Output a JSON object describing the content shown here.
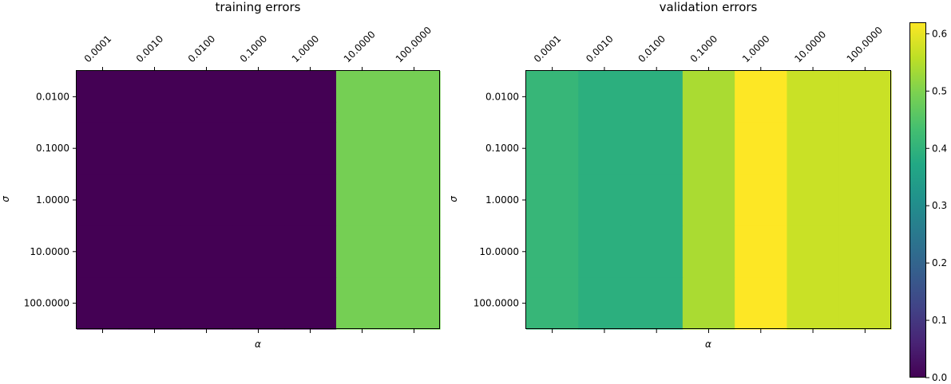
{
  "chart_data": [
    {
      "type": "heatmap",
      "title": "training errors",
      "xlabel": "α",
      "ylabel": "σ",
      "x_tick_labels": [
        "0.0001",
        "0.0010",
        "0.0100",
        "0.1000",
        "1.0000",
        "10.0000",
        "100.0000"
      ],
      "y_tick_labels": [
        "0.0100",
        "0.1000",
        "1.0000",
        "10.0000",
        "100.0000"
      ],
      "values": [
        [
          0.0,
          0.0,
          0.0,
          0.0,
          0.0,
          0.49,
          0.49
        ],
        [
          0.0,
          0.0,
          0.0,
          0.0,
          0.0,
          0.49,
          0.49
        ],
        [
          0.0,
          0.0,
          0.0,
          0.0,
          0.0,
          0.49,
          0.49
        ],
        [
          0.0,
          0.0,
          0.0,
          0.0,
          0.0,
          0.49,
          0.49
        ],
        [
          0.0,
          0.0,
          0.0,
          0.0,
          0.0,
          0.49,
          0.49
        ]
      ]
    },
    {
      "type": "heatmap",
      "title": "validation errors",
      "xlabel": "α",
      "ylabel": "σ",
      "x_tick_labels": [
        "0.0001",
        "0.0010",
        "0.0100",
        "0.1000",
        "1.0000",
        "10.0000",
        "100.0000"
      ],
      "y_tick_labels": [
        "0.0100",
        "0.1000",
        "1.0000",
        "10.0000",
        "100.0000"
      ],
      "values": [
        [
          0.41,
          0.39,
          0.39,
          0.54,
          0.62,
          0.57,
          0.57
        ],
        [
          0.41,
          0.39,
          0.39,
          0.54,
          0.62,
          0.57,
          0.57
        ],
        [
          0.41,
          0.39,
          0.39,
          0.54,
          0.62,
          0.57,
          0.57
        ],
        [
          0.41,
          0.39,
          0.39,
          0.54,
          0.62,
          0.57,
          0.57
        ],
        [
          0.41,
          0.39,
          0.39,
          0.54,
          0.62,
          0.57,
          0.57
        ]
      ]
    }
  ],
  "colorbar": {
    "colormap": "viridis",
    "vmin": 0.0,
    "vmax": 0.62,
    "tick_labels": [
      "0.0",
      "0.1",
      "0.2",
      "0.3",
      "0.4",
      "0.5",
      "0.6"
    ],
    "tick_values": [
      0.0,
      0.1,
      0.2,
      0.3,
      0.4,
      0.5,
      0.6
    ]
  }
}
